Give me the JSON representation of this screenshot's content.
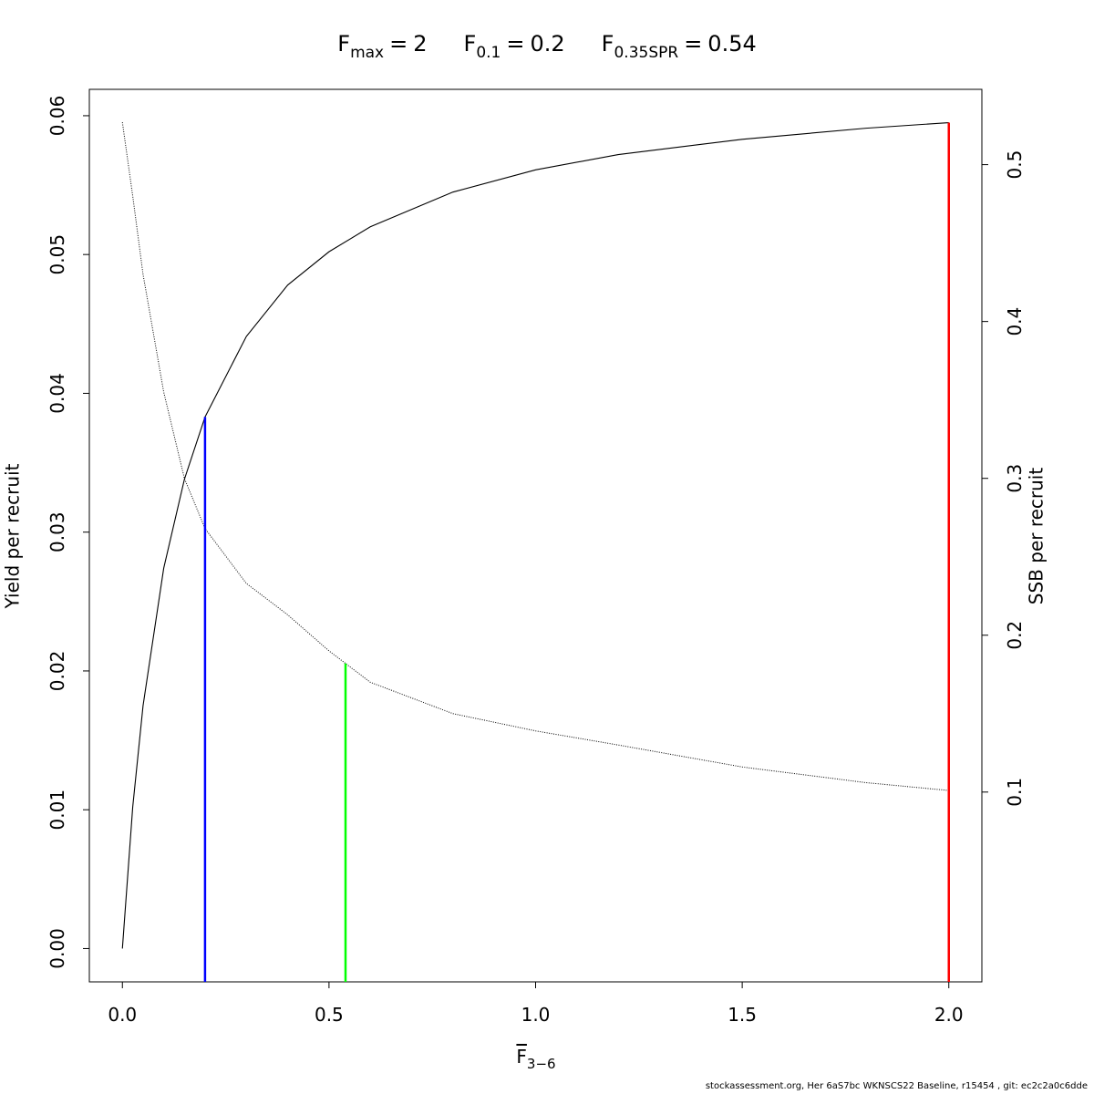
{
  "chart_data": {
    "type": "line",
    "title": [
      {
        "symbol": "F",
        "subscript": "max",
        "relation": "=",
        "value": 2
      },
      {
        "symbol": "F",
        "subscript": "0.1",
        "relation": "=",
        "value": 0.2
      },
      {
        "symbol": "F",
        "subscript": "0.35SPR",
        "relation": "=",
        "value": 0.54
      }
    ],
    "x_label": {
      "symbol": "F",
      "subscript": "3−6"
    },
    "y_label": "Yield per recruit",
    "y2_label": "SSB per recruit",
    "x": [
      0,
      0.025,
      0.05,
      0.1,
      0.15,
      0.2,
      0.3,
      0.4,
      0.5,
      0.6,
      0.8,
      1.0,
      1.2,
      1.5,
      1.8,
      2.0
    ],
    "series": [
      {
        "name": "Yield per recruit",
        "color": "#000000",
        "dash": "solid",
        "values": [
          0,
          0.0102,
          0.0175,
          0.0274,
          0.0338,
          0.0383,
          0.0441,
          0.0478,
          0.0502,
          0.052,
          0.0545,
          0.0561,
          0.0572,
          0.0583,
          0.0591,
          0.0595
        ]
      },
      {
        "name": "SSB per recruit",
        "color": "#000000",
        "dash": "dotted",
        "axis": "y2",
        "values": [
          0.527,
          0.48,
          0.43,
          0.355,
          0.3,
          0.268,
          0.233,
          0.213,
          0.19,
          0.17,
          0.15,
          0.139,
          0.13,
          0.116,
          0.106,
          0.101
        ]
      }
    ],
    "reference_lines": [
      {
        "x": 0.2,
        "top": 0.0383,
        "color": "#0000ff"
      },
      {
        "x": 0.54,
        "top": 0.182,
        "axis": "y2",
        "color": "#00ff00"
      },
      {
        "x": 2,
        "top": 0.0595,
        "color": "#ff0000"
      }
    ],
    "xlim": [
      -0.08,
      2.08
    ],
    "ylim": [
      -0.0024,
      0.0619
    ],
    "y2lim": [
      -0.021,
      0.548
    ],
    "xticks": [
      {
        "value": 0,
        "label": "0.0"
      },
      0.5,
      {
        "value": 1,
        "label": "1.0"
      },
      1.5,
      {
        "value": 2,
        "label": "2.0"
      }
    ],
    "yticks": [
      {
        "value": 0,
        "label": "0.00"
      },
      {
        "value": 0.01,
        "label": "0.01"
      },
      {
        "value": 0.02,
        "label": "0.02"
      },
      {
        "value": 0.03,
        "label": "0.03"
      },
      {
        "value": 0.04,
        "label": "0.04"
      },
      {
        "value": 0.05,
        "label": "0.05"
      },
      {
        "value": 0.06,
        "label": "0.06"
      }
    ],
    "y2ticks": [
      0.1,
      0.2,
      0.3,
      0.4,
      0.5
    ],
    "footer": "stockassessment.org, Her  6aS7bc  WKNSCS22  Baseline, r15454 , git: ec2c2a0c6dde"
  }
}
